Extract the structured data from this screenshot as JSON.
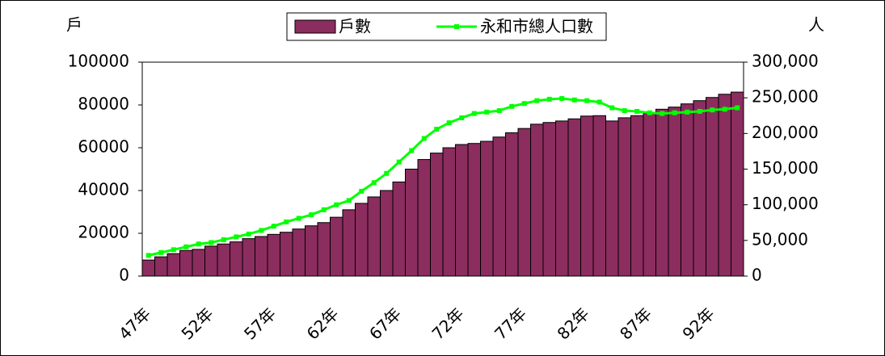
{
  "chart_data": {
    "type": "bar-line",
    "y_title": "戶",
    "y2_title": "人",
    "categories": [
      "47年",
      null,
      null,
      null,
      null,
      "52年",
      null,
      null,
      null,
      null,
      "57年",
      null,
      null,
      null,
      null,
      "62年",
      null,
      null,
      null,
      null,
      "67年",
      null,
      null,
      null,
      null,
      "72年",
      null,
      null,
      null,
      null,
      "77年",
      null,
      null,
      null,
      null,
      "82年",
      null,
      null,
      null,
      null,
      "87年",
      null,
      null,
      null,
      null,
      "92年",
      null,
      null
    ],
    "series": [
      {
        "name": "戶數",
        "color": "#8b2d5e",
        "values": [
          7500,
          9000,
          10500,
          12000,
          12500,
          14000,
          15000,
          16000,
          17500,
          18500,
          19500,
          20500,
          22000,
          23500,
          25000,
          27500,
          31000,
          34000,
          37000,
          40000,
          44000,
          50000,
          54500,
          57500,
          60000,
          61500,
          62000,
          63000,
          65000,
          67000,
          69000,
          71000,
          71800,
          72500,
          73500,
          74800,
          75000,
          72500,
          74000,
          75000,
          76000,
          78000,
          79000,
          80500,
          82000,
          83500,
          85000,
          86000
        ]
      },
      {
        "name": "永和市總人口數",
        "color": "#00ff00",
        "axis": "y2",
        "values": [
          29000,
          33000,
          37000,
          41000,
          45000,
          47000,
          51000,
          55000,
          59000,
          64000,
          70000,
          76000,
          81000,
          86000,
          93000,
          100000,
          106000,
          119000,
          131000,
          144000,
          160000,
          176000,
          193000,
          206000,
          215000,
          222000,
          228000,
          230000,
          232000,
          238000,
          242000,
          246000,
          248000,
          249000,
          247000,
          246000,
          244000,
          236000,
          232000,
          231000,
          229000,
          228000,
          229000,
          230000,
          231000,
          233000,
          234000,
          236000
        ]
      }
    ],
    "ylim": [
      0,
      100000
    ],
    "yticks": [
      0,
      20000,
      40000,
      60000,
      80000,
      100000
    ],
    "y2lim": [
      0,
      300000
    ],
    "y2ticks": [
      0,
      {
        "value": 50000,
        "label": "50,000"
      },
      {
        "value": 100000,
        "label": "100,000"
      },
      {
        "value": 150000,
        "label": "150,000"
      },
      {
        "value": 200000,
        "label": "200,000"
      },
      {
        "value": 250000,
        "label": "250,000"
      },
      {
        "value": 300000,
        "label": "300,000"
      }
    ]
  }
}
